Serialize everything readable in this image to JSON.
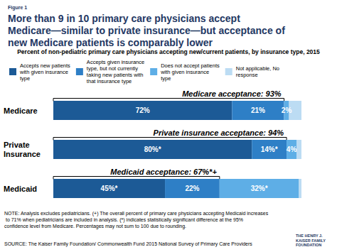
{
  "chart_data": {
    "type": "bar",
    "figure_label": "Figure 1",
    "title": "More than 9 in 10 primary care physicians accept Medicare—similar to private insurance—but acceptance of new Medicare patients is comparably lower",
    "subtitle": "Percent of non-pediatric primary care physicians accepting new/current patients, by insurance type, 2015",
    "orientation": "horizontal",
    "stacked": true,
    "data_labels": true,
    "tick_labels": "y",
    "grid": false,
    "legend": "top",
    "categories": [
      "Medicare",
      "Private Insurance",
      "Medicaid"
    ],
    "xlim": [
      0,
      100
    ],
    "series": [
      {
        "name": "Accepts new patients with given insurance type",
        "color": "#1c5a96",
        "values": [
          72,
          80,
          45
        ],
        "value_labels": [
          "72%",
          "80%*",
          "45%*"
        ]
      },
      {
        "name": "Accepts given insurance type, but not currently taking new patients with that insurance type",
        "color": "#2e7fc6",
        "values": [
          21,
          14,
          22
        ],
        "value_labels": [
          "21%",
          "14%*",
          "22%"
        ]
      },
      {
        "name": "Does not accept patients with given insurance type",
        "color": "#5eaee6",
        "values": [
          2,
          4,
          32
        ],
        "value_labels": [
          "2%",
          "4%",
          "32%*"
        ]
      },
      {
        "name": "Not applicable, No response",
        "color": "#bcdcf3",
        "values": [
          5,
          2,
          1
        ],
        "value_labels": [
          null,
          null,
          null
        ]
      }
    ],
    "annotations": [
      {
        "category": "Medicare",
        "text": "Medicare acceptance: 93%"
      },
      {
        "category": "Private Insurance",
        "text": "Private insurance acceptance: 94%"
      },
      {
        "category": "Medicaid",
        "text": "Medicaid acceptance: 67%*+"
      }
    ],
    "note": "NOTE: Analysis excludes pediatricians. (+) The overall percent of primary care physicians accepting Medicaid increases to 71% when pediatricians are included in analysis. (*) indicates statistically significant difference at the 95% confidence level from Medicare. Percentages may not sum to 100 due to rounding.",
    "source": "SOURCE: The Kaiser Family Foundation/ Commonwealth Fund 2015 National Survey of Primary Care Providers",
    "logo": "THE HENRY J. KAISER FAMILY FOUNDATION"
  }
}
